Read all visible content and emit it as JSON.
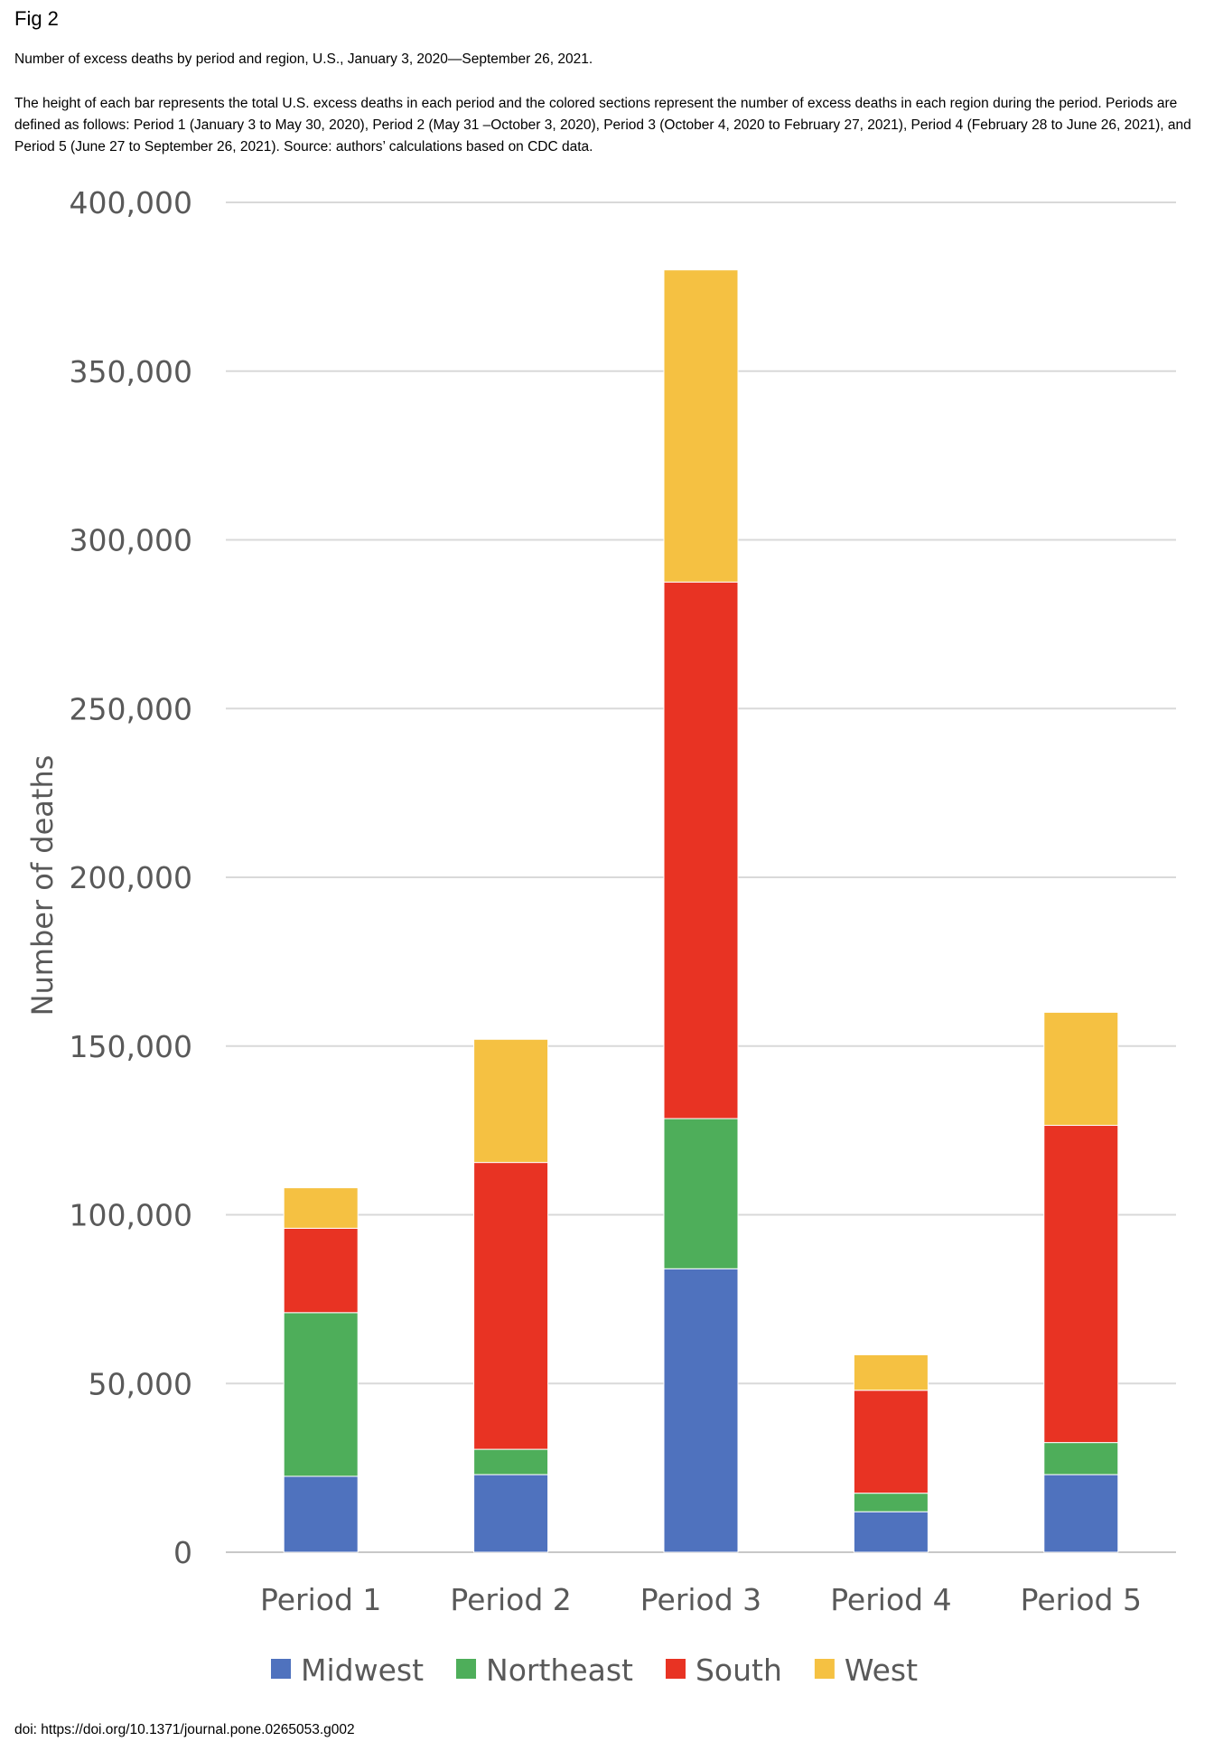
{
  "figure": {
    "label": "Fig 2",
    "title": "Number of excess deaths by period and region, U.S., January 3, 2020—September 26, 2021.",
    "caption": "The height of each bar represents the total U.S. excess deaths in each period and the colored sections represent the number of excess deaths in each region during the period. Periods are defined as follows: Period 1 (January 3 to May 30, 2020), Period 2 (May 31 –October 3, 2020), Period 3 (October 4, 2020 to February 27, 2021), Period 4 (February 28 to June 26, 2021), and Period 5 (June 27 to September 26, 2021). Source: authors’ calculations based on CDC data.",
    "doi": "doi: https://doi.org/10.1371/journal.pone.0265053.g002"
  },
  "chart_data": {
    "type": "bar",
    "stacked": true,
    "categories": [
      "Period 1",
      "Period 2",
      "Period 3",
      "Period 4",
      "Period 5"
    ],
    "series": [
      {
        "name": "Midwest",
        "color": "#4f72be",
        "values": [
          22500,
          23000,
          84000,
          12000,
          23000
        ]
      },
      {
        "name": "Northeast",
        "color": "#4eae5a",
        "values": [
          48500,
          7500,
          44500,
          5500,
          9500
        ]
      },
      {
        "name": "South",
        "color": "#e83323",
        "values": [
          25000,
          85000,
          159000,
          30500,
          94000
        ]
      },
      {
        "name": "West",
        "color": "#f5c142",
        "values": [
          12000,
          36500,
          92500,
          10500,
          33500
        ]
      }
    ],
    "ylabel": "Number of deaths",
    "ylim": [
      0,
      400000
    ],
    "yticks": [
      0,
      50000,
      100000,
      150000,
      200000,
      250000,
      300000,
      350000,
      400000
    ],
    "ytick_labels": [
      "0",
      "50,000",
      "100,000",
      "150,000",
      "200,000",
      "250,000",
      "300,000",
      "350,000",
      "400,000"
    ],
    "grid": true,
    "legend_position": "bottom"
  }
}
